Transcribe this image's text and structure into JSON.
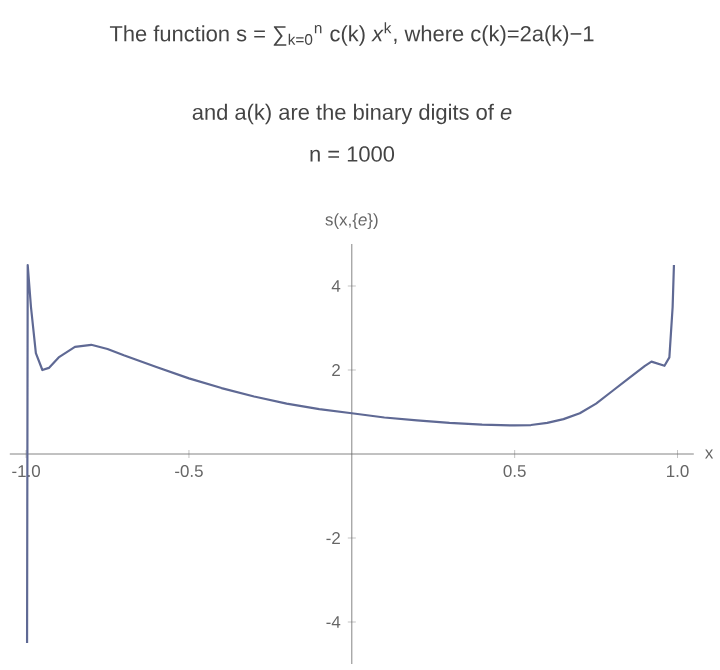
{
  "chart_data": {
    "type": "line",
    "title": "The function s = ∑$_{k=0}$$^{n}$ c(k) *x*$^{k}$, where c(k)=2a(k)−1",
    "subtitle": "and a(k) are the binary digits of *e*",
    "annotations": [
      "n = 1000"
    ],
    "xlabel": "x",
    "ylabel": "s(x,{*e*})",
    "xlim": [
      -1.05,
      1.05
    ],
    "ylim": [
      -5,
      5
    ],
    "xticks": [
      {
        "value": -1,
        "label": "-1.0"
      },
      {
        "value": -0.5,
        "label": "-0.5"
      },
      {
        "value": 0.5,
        "label": "0.5"
      },
      {
        "value": 1,
        "label": "1.0"
      }
    ],
    "yticks": [
      -4,
      -2,
      2,
      4
    ],
    "grid": false,
    "marker": "none",
    "line_style": "solid",
    "series": [
      {
        "color": "#5f6994",
        "x": [
          -0.997,
          -0.996,
          -0.995,
          -0.985,
          -0.97,
          -0.95,
          -0.93,
          -0.9,
          -0.85,
          -0.8,
          -0.75,
          -0.7,
          -0.6,
          -0.5,
          -0.4,
          -0.3,
          -0.2,
          -0.1,
          0,
          0.1,
          0.2,
          0.3,
          0.4,
          0.5,
          0.55,
          0.6,
          0.65,
          0.7,
          0.75,
          0.8,
          0.85,
          0.9,
          0.92,
          0.94,
          0.96,
          0.975,
          0.985,
          0.989
        ],
        "values": [
          -4.5,
          0,
          4.5,
          3.5,
          2.4,
          2.0,
          2.05,
          2.3,
          2.55,
          2.6,
          2.5,
          2.35,
          2.07,
          1.8,
          1.57,
          1.37,
          1.2,
          1.07,
          0.97,
          0.87,
          0.8,
          0.74,
          0.7,
          0.68,
          0.69,
          0.74,
          0.83,
          0.97,
          1.2,
          1.5,
          1.8,
          2.1,
          2.2,
          2.15,
          2.1,
          2.3,
          3.5,
          4.5
        ]
      }
    ]
  }
}
